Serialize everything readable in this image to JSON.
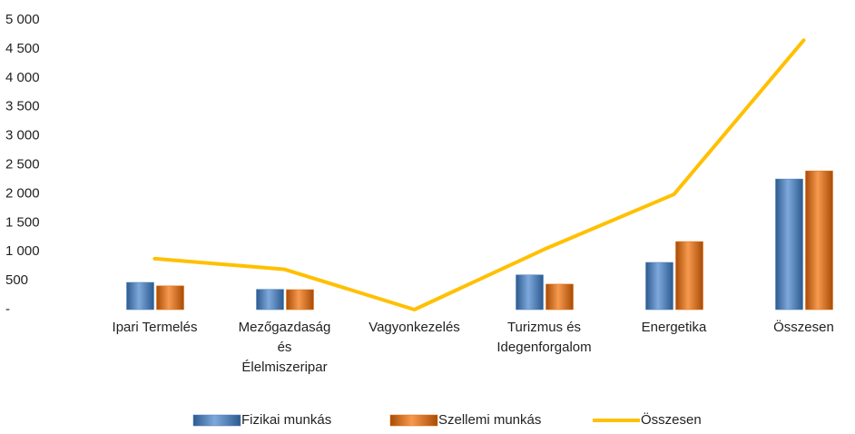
{
  "chart_data": {
    "type": "bar_line",
    "categories": [
      "Ipari Termelés",
      "Mezőgazdaság és Élelmiszeripar",
      "Vagyonkezelés",
      "Turizmus és Idegenforgalom",
      "Energetika",
      "Összesen"
    ],
    "series": [
      {
        "name": "Fizikai munkás",
        "color": "#4a7ebb",
        "type": "bar",
        "values": [
          470,
          350,
          0,
          600,
          815,
          2255
        ]
      },
      {
        "name": "Szellemi munkás",
        "color": "#e46c0a",
        "type": "bar",
        "values": [
          410,
          345,
          0,
          440,
          1175,
          2395
        ]
      },
      {
        "name": "Összesen",
        "color": "#ffc000",
        "type": "line",
        "values": [
          880,
          695,
          0,
          1040,
          1990,
          4650
        ]
      }
    ],
    "ylim": [
      0,
      5000
    ],
    "yticks": [
      {
        "value": 0,
        "label": "-"
      },
      500,
      {
        "value": 1000,
        "label": "1 000"
      },
      {
        "value": 1500,
        "label": "1 500"
      },
      {
        "value": 2000,
        "label": "2 000"
      },
      {
        "value": 2500,
        "label": "2 500"
      },
      {
        "value": 3000,
        "label": "3 000"
      },
      {
        "value": 3500,
        "label": "3 500"
      },
      {
        "value": 4000,
        "label": "4 000"
      },
      {
        "value": 4500,
        "label": "4 500"
      },
      {
        "value": 5000,
        "label": "5 000"
      }
    ],
    "legend": "bottom"
  }
}
